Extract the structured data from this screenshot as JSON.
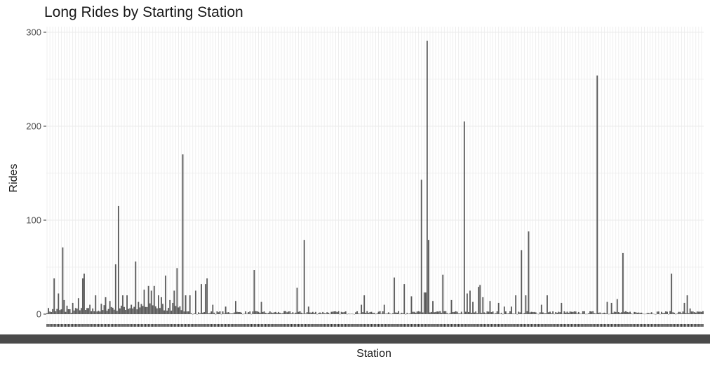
{
  "chart_data": {
    "type": "bar",
    "title": "Long Rides by Starting Station",
    "xlabel": "Station",
    "ylabel": "Rides",
    "ylim": [
      -2,
      305
    ],
    "yticks": [
      0,
      100,
      200,
      300
    ],
    "grid": true,
    "legend": "none",
    "bar_color": "#595959",
    "grid_color": "#ebebeb",
    "spike_values": [
      {
        "index": 5,
        "value": 38
      },
      {
        "index": 8,
        "value": 22
      },
      {
        "index": 11,
        "value": 71
      },
      {
        "index": 12,
        "value": 15
      },
      {
        "index": 14,
        "value": 9
      },
      {
        "index": 18,
        "value": 12
      },
      {
        "index": 22,
        "value": 17
      },
      {
        "index": 25,
        "value": 38
      },
      {
        "index": 26,
        "value": 43
      },
      {
        "index": 30,
        "value": 10
      },
      {
        "index": 34,
        "value": 20
      },
      {
        "index": 38,
        "value": 11
      },
      {
        "index": 41,
        "value": 18
      },
      {
        "index": 44,
        "value": 14
      },
      {
        "index": 48,
        "value": 53
      },
      {
        "index": 50,
        "value": 115
      },
      {
        "index": 53,
        "value": 20
      },
      {
        "index": 56,
        "value": 20
      },
      {
        "index": 59,
        "value": 10
      },
      {
        "index": 62,
        "value": 56
      },
      {
        "index": 64,
        "value": 13
      },
      {
        "index": 68,
        "value": 26
      },
      {
        "index": 71,
        "value": 30
      },
      {
        "index": 73,
        "value": 25
      },
      {
        "index": 75,
        "value": 30
      },
      {
        "index": 78,
        "value": 20
      },
      {
        "index": 80,
        "value": 18
      },
      {
        "index": 83,
        "value": 41
      },
      {
        "index": 86,
        "value": 15
      },
      {
        "index": 89,
        "value": 25
      },
      {
        "index": 91,
        "value": 49
      },
      {
        "index": 95,
        "value": 170
      },
      {
        "index": 97,
        "value": 20
      },
      {
        "index": 100,
        "value": 20
      },
      {
        "index": 104,
        "value": 25
      },
      {
        "index": 108,
        "value": 32
      },
      {
        "index": 111,
        "value": 32
      },
      {
        "index": 112,
        "value": 38
      },
      {
        "index": 116,
        "value": 10
      },
      {
        "index": 125,
        "value": 8
      },
      {
        "index": 132,
        "value": 14
      },
      {
        "index": 145,
        "value": 47
      },
      {
        "index": 150,
        "value": 13
      },
      {
        "index": 175,
        "value": 28
      },
      {
        "index": 180,
        "value": 79
      },
      {
        "index": 183,
        "value": 8
      },
      {
        "index": 220,
        "value": 10
      },
      {
        "index": 222,
        "value": 20
      },
      {
        "index": 236,
        "value": 10
      },
      {
        "index": 243,
        "value": 39
      },
      {
        "index": 250,
        "value": 32
      },
      {
        "index": 255,
        "value": 19
      },
      {
        "index": 262,
        "value": 143
      },
      {
        "index": 264,
        "value": 23
      },
      {
        "index": 265,
        "value": 23
      },
      {
        "index": 266,
        "value": 291
      },
      {
        "index": 267,
        "value": 79
      },
      {
        "index": 270,
        "value": 14
      },
      {
        "index": 277,
        "value": 42
      },
      {
        "index": 283,
        "value": 15
      },
      {
        "index": 292,
        "value": 205
      },
      {
        "index": 294,
        "value": 22
      },
      {
        "index": 296,
        "value": 25
      },
      {
        "index": 298,
        "value": 13
      },
      {
        "index": 302,
        "value": 29
      },
      {
        "index": 303,
        "value": 31
      },
      {
        "index": 305,
        "value": 18
      },
      {
        "index": 310,
        "value": 14
      },
      {
        "index": 316,
        "value": 12
      },
      {
        "index": 320,
        "value": 8
      },
      {
        "index": 325,
        "value": 8
      },
      {
        "index": 328,
        "value": 20
      },
      {
        "index": 332,
        "value": 68
      },
      {
        "index": 335,
        "value": 20
      },
      {
        "index": 337,
        "value": 88
      },
      {
        "index": 346,
        "value": 10
      },
      {
        "index": 350,
        "value": 20
      },
      {
        "index": 360,
        "value": 12
      },
      {
        "index": 385,
        "value": 254
      },
      {
        "index": 392,
        "value": 13
      },
      {
        "index": 395,
        "value": 12
      },
      {
        "index": 399,
        "value": 16
      },
      {
        "index": 403,
        "value": 65
      },
      {
        "index": 437,
        "value": 43
      },
      {
        "index": 446,
        "value": 12
      },
      {
        "index": 448,
        "value": 20
      },
      {
        "index": 450,
        "value": 6
      }
    ]
  }
}
